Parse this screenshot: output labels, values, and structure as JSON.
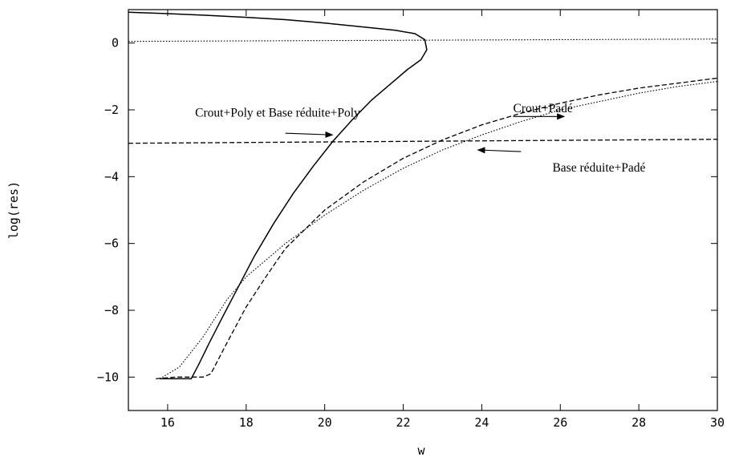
{
  "chart_data": {
    "type": "line",
    "xlabel": "w",
    "ylabel": "log(res)",
    "xlim": [
      15,
      30
    ],
    "ylim": [
      -11,
      1
    ],
    "xticks": [
      16,
      18,
      20,
      22,
      24,
      26,
      28,
      30
    ],
    "yticks": [
      0,
      -2,
      -4,
      -6,
      -8,
      -10
    ],
    "grid": false,
    "series": [
      {
        "key": "crout-poly-base-poly",
        "style": "solid",
        "points": [
          [
            15,
            0.92
          ],
          [
            16,
            0.88
          ],
          [
            17,
            0.83
          ],
          [
            18,
            0.77
          ],
          [
            19,
            0.7
          ],
          [
            20,
            0.6
          ],
          [
            21,
            0.48
          ],
          [
            21.8,
            0.38
          ],
          [
            22.3,
            0.28
          ],
          [
            22.55,
            0.1
          ],
          [
            22.6,
            -0.2
          ],
          [
            22.45,
            -0.5
          ],
          [
            22.1,
            -0.8
          ],
          [
            21.7,
            -1.2
          ],
          [
            21.2,
            -1.7
          ],
          [
            20.7,
            -2.3
          ],
          [
            20.2,
            -2.95
          ],
          [
            19.7,
            -3.7
          ],
          [
            19.2,
            -4.5
          ],
          [
            18.7,
            -5.4
          ],
          [
            18.2,
            -6.4
          ],
          [
            17.8,
            -7.3
          ],
          [
            17.4,
            -8.2
          ],
          [
            17.05,
            -9.0
          ],
          [
            16.8,
            -9.6
          ],
          [
            16.6,
            -10.05
          ],
          [
            15.8,
            -10.05
          ]
        ]
      },
      {
        "key": "crout-pade",
        "style": "dashed",
        "points": [
          [
            15.7,
            -10.05
          ],
          [
            16.2,
            -10.0
          ],
          [
            16.9,
            -10.0
          ],
          [
            17.1,
            -9.9
          ],
          [
            17.5,
            -9.0
          ],
          [
            18,
            -7.9
          ],
          [
            18.5,
            -7.0
          ],
          [
            19,
            -6.15
          ],
          [
            20,
            -5.0
          ],
          [
            21,
            -4.15
          ],
          [
            22,
            -3.45
          ],
          [
            23,
            -2.9
          ],
          [
            24,
            -2.45
          ],
          [
            25,
            -2.1
          ],
          [
            26,
            -1.8
          ],
          [
            27,
            -1.55
          ],
          [
            28,
            -1.35
          ],
          [
            29,
            -1.2
          ],
          [
            30,
            -1.05
          ]
        ]
      },
      {
        "key": "base-pade",
        "style": "dotted",
        "points": [
          [
            15.8,
            -10.05
          ],
          [
            16.3,
            -9.7
          ],
          [
            16.9,
            -8.8
          ],
          [
            17.5,
            -7.7
          ],
          [
            18,
            -7.0
          ],
          [
            18.5,
            -6.5
          ],
          [
            19,
            -6.0
          ],
          [
            20,
            -5.15
          ],
          [
            21,
            -4.4
          ],
          [
            22,
            -3.75
          ],
          [
            23,
            -3.2
          ],
          [
            24,
            -2.75
          ],
          [
            25,
            -2.35
          ],
          [
            26,
            -2.0
          ],
          [
            27,
            -1.75
          ],
          [
            28,
            -1.5
          ],
          [
            29,
            -1.3
          ],
          [
            30,
            -1.15
          ]
        ]
      },
      {
        "key": "reference-zero",
        "style": "dotted",
        "points": [
          [
            15,
            0.05
          ],
          [
            30,
            0.12
          ]
        ]
      },
      {
        "key": "reference-minus-three",
        "style": "dashed",
        "points": [
          [
            15,
            -3.0
          ],
          [
            30,
            -2.88
          ]
        ]
      }
    ],
    "annotations": [
      {
        "text": "Crout+Poly et Base réduite+Poly",
        "x": 16.7,
        "y": -2.2,
        "arrow_from": [
          19.0,
          -2.7
        ],
        "arrow_to": [
          20.2,
          -2.75
        ]
      },
      {
        "text": "Crout+Padé",
        "x": 24.8,
        "y": -2.07,
        "arrow_from": [
          24.8,
          -2.2
        ],
        "arrow_to": [
          26.1,
          -2.2
        ]
      },
      {
        "text": "Base réduite+Padé",
        "x": 25.8,
        "y": -3.85,
        "arrow_from": [
          25.0,
          -3.25
        ],
        "arrow_to": [
          23.9,
          -3.2
        ]
      }
    ]
  }
}
